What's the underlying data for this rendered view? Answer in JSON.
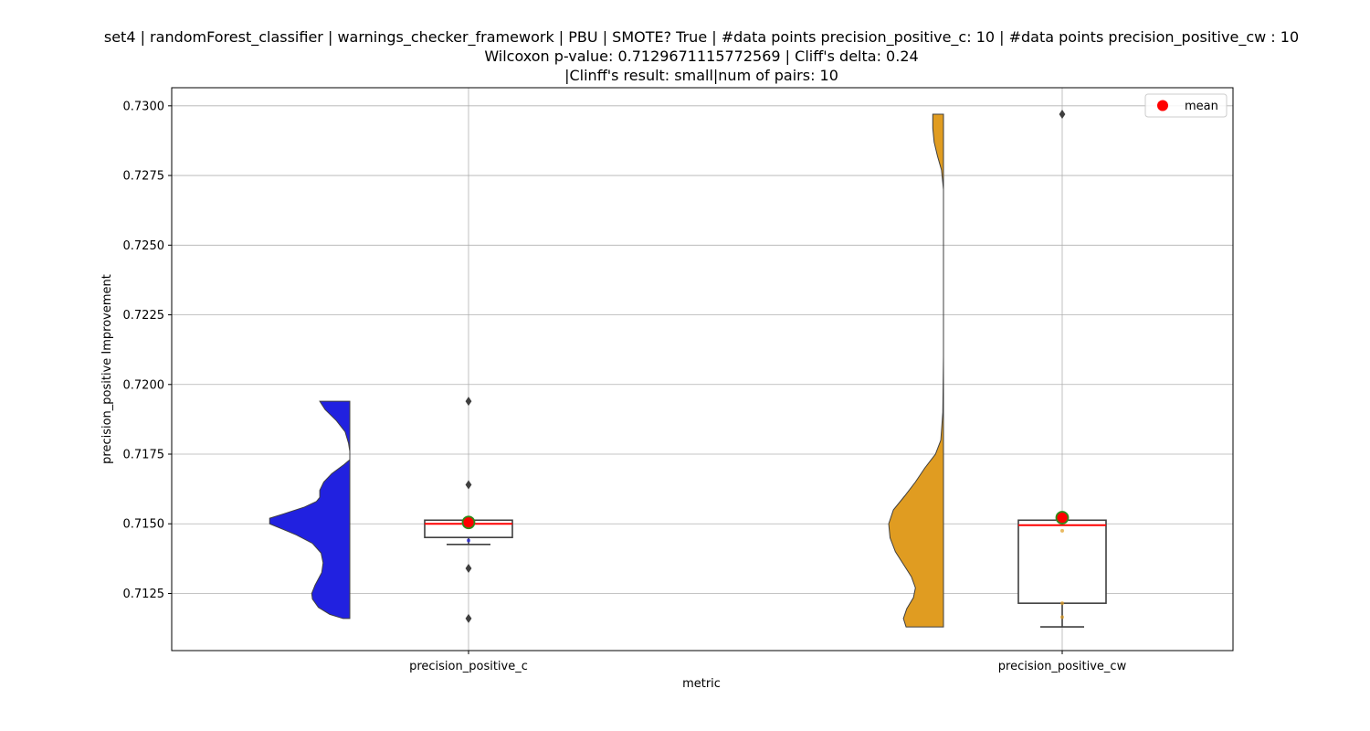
{
  "chart_data": {
    "type": "violin",
    "title_lines": [
      "set4 | randomForest_classifier | warnings_checker_framework | PBU | SMOTE? True | #data points precision_positive_c: 10 | #data points precision_positive_cw : 10",
      "Wilcoxon p-value: 0.7129671115772569 | Cliff's delta: 0.24",
      "|Clinff's result: small|num of pairs: 10"
    ],
    "xlabel": "metric",
    "ylabel": "precision_positive Improvement",
    "ylim": [
      0.71045,
      0.73065
    ],
    "y_ticks": [
      0.7125,
      0.715,
      0.7175,
      0.72,
      0.7225,
      0.725,
      0.7275,
      0.73
    ],
    "y_tick_labels": [
      "0.7125",
      "0.7150",
      "0.7175",
      "0.7200",
      "0.7225",
      "0.7250",
      "0.7275",
      "0.7300"
    ],
    "grid": true,
    "legend": {
      "placement": "top-right",
      "entries": [
        {
          "label": "mean",
          "color": "#ff0000"
        }
      ]
    },
    "categories": [
      "precision_positive_c",
      "precision_positive_cw"
    ],
    "series": [
      {
        "category": "precision_positive_c",
        "color": "#2121e0",
        "violin_range": [
          0.7116,
          0.7194
        ],
        "density_profile": [
          [
            0.7116,
            0.1
          ],
          [
            0.71175,
            0.3
          ],
          [
            0.712,
            0.47
          ],
          [
            0.7123,
            0.56
          ],
          [
            0.7125,
            0.57
          ],
          [
            0.7128,
            0.52
          ],
          [
            0.71325,
            0.42
          ],
          [
            0.7136,
            0.4
          ],
          [
            0.71395,
            0.43
          ],
          [
            0.7143,
            0.56
          ],
          [
            0.7146,
            0.8
          ],
          [
            0.7148,
            1.0
          ],
          [
            0.715,
            1.2
          ],
          [
            0.7152,
            1.2
          ],
          [
            0.71535,
            1.0
          ],
          [
            0.7156,
            0.68
          ],
          [
            0.7158,
            0.5
          ],
          [
            0.71595,
            0.45
          ],
          [
            0.7162,
            0.45
          ],
          [
            0.7165,
            0.39
          ],
          [
            0.7168,
            0.27
          ],
          [
            0.7171,
            0.1
          ],
          [
            0.7173,
            0.0
          ],
          [
            0.7176,
            0.0
          ],
          [
            0.7179,
            0.02
          ],
          [
            0.7183,
            0.07
          ],
          [
            0.7187,
            0.2
          ],
          [
            0.7191,
            0.37
          ],
          [
            0.7194,
            0.45
          ]
        ],
        "box": {
          "q1": 0.71451,
          "median": 0.715,
          "q3": 0.71513,
          "whisker_low": 0.71426,
          "whisker_high": 0.71513
        },
        "mean": 0.71505,
        "outliers": [
          0.7194,
          0.7164,
          0.7134,
          0.7116
        ],
        "points": [
          0.7144
        ]
      },
      {
        "category": "precision_positive_cw",
        "color": "#e09c21",
        "violin_range": [
          0.7113,
          0.7297
        ],
        "density_profile": [
          [
            0.7113,
            0.56
          ],
          [
            0.7116,
            0.6
          ],
          [
            0.71195,
            0.55
          ],
          [
            0.71235,
            0.45
          ],
          [
            0.7127,
            0.42
          ],
          [
            0.7131,
            0.48
          ],
          [
            0.71355,
            0.6
          ],
          [
            0.714,
            0.72
          ],
          [
            0.7145,
            0.8
          ],
          [
            0.715,
            0.82
          ],
          [
            0.7155,
            0.75
          ],
          [
            0.716,
            0.58
          ],
          [
            0.7165,
            0.42
          ],
          [
            0.717,
            0.28
          ],
          [
            0.7175,
            0.12
          ],
          [
            0.718,
            0.04
          ],
          [
            0.719,
            0.01
          ],
          [
            0.721,
            0.0
          ],
          [
            0.725,
            0.0
          ],
          [
            0.727,
            0.0
          ],
          [
            0.7277,
            0.03
          ],
          [
            0.7282,
            0.09
          ],
          [
            0.7287,
            0.14
          ],
          [
            0.7292,
            0.16
          ],
          [
            0.7297,
            0.16
          ]
        ],
        "box": {
          "q1": 0.71215,
          "median": 0.71495,
          "q3": 0.71513,
          "whisker_low": 0.7113,
          "whisker_high": 0.71513
        },
        "mean": 0.71522,
        "outliers": [
          0.7297
        ],
        "points": [
          0.71215,
          0.71165,
          0.71475
        ]
      }
    ]
  }
}
